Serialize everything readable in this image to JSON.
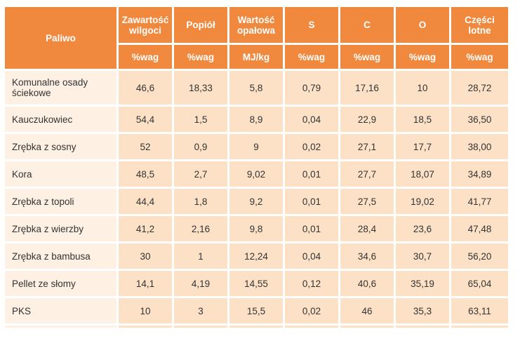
{
  "table": {
    "headers": {
      "fuel": "Paliwo",
      "moisture": "Zawartość wilgoci",
      "ash": "Popiół",
      "calorific": "Wartość opałowa",
      "s": "S",
      "c": "C",
      "o": "O",
      "volatile": "Części lotne"
    },
    "units": {
      "moisture": "%wag",
      "ash": "%wag",
      "calorific": "MJ/kg",
      "s": "%wag",
      "c": "%wag",
      "o": "%wag",
      "volatile": "%wag"
    },
    "rows": [
      {
        "name": "Komunalne osady ściekowe",
        "moisture": "46,6",
        "ash": "18,33",
        "calorific": "5,8",
        "s": "0,79",
        "c": "17,16",
        "o": "10",
        "volatile": "28,72"
      },
      {
        "name": "Kauczukowiec",
        "moisture": "54,4",
        "ash": "1,5",
        "calorific": "8,9",
        "s": "0,04",
        "c": "22,9",
        "o": "18,5",
        "volatile": "36,50"
      },
      {
        "name": "Zrębka z sosny",
        "moisture": "52",
        "ash": "0,9",
        "calorific": "9",
        "s": "0,02",
        "c": "27,1",
        "o": "17,7",
        "volatile": "38,00"
      },
      {
        "name": "Kora",
        "moisture": "48,5",
        "ash": "2,7",
        "calorific": "9,02",
        "s": "0,01",
        "c": "27,7",
        "o": "18,07",
        "volatile": "34,89"
      },
      {
        "name": "Zrębka z topoli",
        "moisture": "44,4",
        "ash": "1,8",
        "calorific": "9,2",
        "s": "0,01",
        "c": "27,5",
        "o": "19,02",
        "volatile": "41,77"
      },
      {
        "name": "Zrębka z wierzby",
        "moisture": "41,2",
        "ash": "2,16",
        "calorific": "9,8",
        "s": "0,01",
        "c": "28,4",
        "o": "23,6",
        "volatile": "47,48"
      },
      {
        "name": "Zrębka z bambusa",
        "moisture": "30",
        "ash": "1",
        "calorific": "12,24",
        "s": "0,04",
        "c": "34,6",
        "o": "30,7",
        "volatile": "56,20"
      },
      {
        "name": "Pellet ze słomy",
        "moisture": "14,1",
        "ash": "4,19",
        "calorific": "14,55",
        "s": "0,12",
        "c": "40,6",
        "o": "35,19",
        "volatile": "65,04"
      },
      {
        "name": "PKS",
        "moisture": "10",
        "ash": "3",
        "calorific": "15,5",
        "s": "0,02",
        "c": "46",
        "o": "35,3",
        "volatile": "63,11"
      }
    ]
  }
}
